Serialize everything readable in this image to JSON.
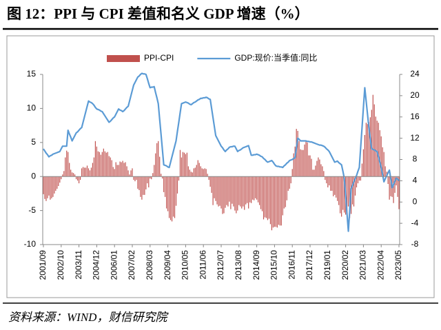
{
  "chart_data": {
    "type": "combo",
    "title": "图 12：PPI 与 CPI 差值和名义 GDP 增速（%）",
    "source": "资料来源：WIND，财信研究院",
    "legend": "top",
    "categories": [
      "2001/09",
      null,
      null,
      null,
      null,
      null,
      null,
      null,
      null,
      null,
      null,
      null,
      null,
      "2002/10",
      null,
      null,
      null,
      null,
      null,
      null,
      null,
      null,
      null,
      null,
      null,
      null,
      "2003/11",
      null,
      null,
      null,
      null,
      null,
      null,
      null,
      null,
      null,
      null,
      null,
      null,
      "2004/12",
      null,
      null,
      null,
      null,
      null,
      null,
      null,
      null,
      null,
      null,
      null,
      null,
      "2006/01",
      null,
      null,
      null,
      null,
      null,
      null,
      null,
      null,
      null,
      null,
      null,
      null,
      "2007/02",
      null,
      null,
      null,
      null,
      null,
      null,
      null,
      null,
      null,
      null,
      null,
      null,
      "2008/03",
      null,
      null,
      null,
      null,
      null,
      null,
      null,
      null,
      null,
      null,
      null,
      null,
      "2009/04",
      null,
      null,
      null,
      null,
      null,
      null,
      null,
      null,
      null,
      null,
      null,
      null,
      "2010/05",
      null,
      null,
      null,
      null,
      null,
      null,
      null,
      null,
      null,
      null,
      null,
      null,
      "2011/06",
      null,
      null,
      null,
      null,
      null,
      null,
      null,
      null,
      null,
      null,
      null,
      null,
      "2012/07",
      null,
      null,
      null,
      null,
      null,
      null,
      null,
      null,
      null,
      null,
      null,
      null,
      "2013/08",
      null,
      null,
      null,
      null,
      null,
      null,
      null,
      null,
      null,
      null,
      null,
      null,
      "2014/09",
      null,
      null,
      null,
      null,
      null,
      null,
      null,
      null,
      null,
      null,
      null,
      null,
      "2015/10",
      null,
      null,
      null,
      null,
      null,
      null,
      null,
      null,
      null,
      null,
      null,
      null,
      "2016/11",
      null,
      null,
      null,
      null,
      null,
      null,
      null,
      null,
      null,
      null,
      null,
      null,
      "2017/12",
      null,
      null,
      null,
      null,
      null,
      null,
      null,
      null,
      null,
      null,
      null,
      null,
      "2019/01",
      null,
      null,
      null,
      null,
      null,
      null,
      null,
      null,
      null,
      null,
      null,
      null,
      "2020/02",
      null,
      null,
      null,
      null,
      null,
      null,
      null,
      null,
      null,
      null,
      null,
      null,
      "2021/03",
      null,
      null,
      null,
      null,
      null,
      null,
      null,
      null,
      null,
      null,
      null,
      null,
      "2022/04",
      null,
      null,
      null,
      null,
      null,
      null,
      null,
      null,
      null,
      null,
      null,
      null,
      "2023/05"
    ],
    "series": [
      {
        "name": "PPI-CPI",
        "type": "bar",
        "axis": "y",
        "color": "#c0504d",
        "values": [
          -2.6,
          -3.3,
          -3.6,
          -3.2,
          -2.8,
          -3.4,
          -3.2,
          -3.0,
          -2.5,
          -2.1,
          -1.8,
          -1.4,
          -0.9,
          -0.4,
          0.3,
          0.8,
          2.8,
          3.8,
          3.6,
          2.0,
          1.0,
          0.6,
          0.5,
          0.3,
          -0.4,
          -0.6,
          -1.0,
          -0.5,
          1.2,
          1.4,
          1.3,
          1.3,
          1.6,
          1.2,
          0.9,
          1.3,
          2.0,
          2.8,
          5.2,
          4.4,
          3.7,
          3.6,
          3.2,
          3.6,
          4.1,
          3.7,
          3.5,
          3.6,
          3.0,
          2.8,
          2.4,
          1.4,
          1.1,
          2.1,
          1.7,
          1.7,
          2.2,
          2.1,
          2.3,
          2.0,
          2.1,
          1.5,
          0.9,
          0.3,
          0.9,
          1.2,
          -0.5,
          -0.7,
          -0.5,
          -1.8,
          -2.0,
          -3.0,
          -3.4,
          -2.7,
          -2.7,
          -1.9,
          -1.0,
          -1.6,
          -0.3,
          -0.4,
          0.5,
          1.7,
          3.4,
          4.9,
          5.2,
          2.9,
          0.4,
          -0.3,
          -2.3,
          -3.0,
          -4.7,
          -5.1,
          -6.1,
          -6.4,
          -6.6,
          -5.9,
          -6.1,
          -4.3,
          -2.5,
          -0.6,
          3.9,
          2.8,
          3.6,
          3.5,
          3.3,
          3.5,
          1.5,
          1.0,
          0.7,
          0.6,
          1.2,
          1.3,
          1.7,
          2.4,
          2.0,
          1.5,
          1.2,
          1.1,
          1.2,
          1.1,
          0.4,
          -0.5,
          -1.5,
          -2.4,
          -4.2,
          -3.2,
          -3.6,
          -4.1,
          -4.4,
          -4.3,
          -4.7,
          -5.5,
          -5.4,
          -4.6,
          -4.2,
          -4.4,
          -3.7,
          -4.8,
          -4.0,
          -4.4,
          -5.0,
          -5.4,
          -5.0,
          -4.2,
          -4.4,
          -4.7,
          -4.4,
          -4.9,
          -4.1,
          -3.9,
          -4.7,
          -3.8,
          -3.9,
          -3.4,
          -3.5,
          -3.2,
          -3.4,
          -3.8,
          -4.2,
          -4.8,
          -5.1,
          -6.3,
          -6.0,
          -6.1,
          -6.4,
          -6.2,
          -7.0,
          -7.9,
          -7.5,
          -7.4,
          -7.4,
          -7.5,
          -7.1,
          -7.2,
          -7.2,
          -5.7,
          -4.7,
          -4.5,
          -3.5,
          -2.1,
          -1.8,
          -1.0,
          1.1,
          3.4,
          4.4,
          7.0,
          6.7,
          5.2,
          4.0,
          3.9,
          3.9,
          4.7,
          5.3,
          5.0,
          3.1,
          3.1,
          2.6,
          1.0,
          1.0,
          1.6,
          2.3,
          2.8,
          2.5,
          1.8,
          1.5,
          0.8,
          -0.5,
          -1.0,
          -1.6,
          -1.3,
          -2.1,
          -2.1,
          -2.9,
          -2.7,
          -3.1,
          -3.6,
          -4.2,
          -5.4,
          -5.9,
          -4.9,
          -5.3,
          -5.6,
          -5.8,
          -4.4,
          -6.1,
          -5.5,
          -4.1,
          -4.4,
          -2.8,
          -1.6,
          -1.0,
          -0.6,
          -0.6,
          1.9,
          4.0,
          6.1,
          7.9,
          7.7,
          8.0,
          8.7,
          9.8,
          12.0,
          10.6,
          8.8,
          8.2,
          7.9,
          6.8,
          5.9,
          4.3,
          3.6,
          1.5,
          0.7,
          -1.1,
          -3.4,
          -2.9,
          -3.0,
          -3.9,
          -2.4,
          -1.3,
          -3.0,
          -4.8
        ]
      },
      {
        "name": "GDP:现价:当季值:同比",
        "type": "line",
        "axis": "y2",
        "color": "#5b9bd5",
        "values": [
          10,
          9.6,
          9.2,
          8.9,
          8.5,
          8.7,
          8.8,
          9,
          9.1,
          9.2,
          9.3,
          9.4,
          9.5,
          10,
          10.5,
          10.5,
          10.5,
          10.5,
          13.5,
          12.8,
          12.2,
          11.5,
          12,
          12.5,
          13,
          13.2,
          13.5,
          13.8,
          14,
          15,
          16,
          17,
          18,
          19,
          18.8,
          18.7,
          18.5,
          18.2,
          17.8,
          17.5,
          17.4,
          17.3,
          17.1,
          17,
          16.6,
          16.2,
          15.8,
          15.4,
          15,
          15.2,
          15.5,
          15.8,
          16,
          16.5,
          17,
          17.5,
          17.3,
          17.2,
          17,
          17.2,
          17.5,
          17.8,
          18,
          19,
          20,
          21,
          22,
          22.5,
          23,
          23.5,
          23.7,
          24,
          24.2,
          24.1,
          24.1,
          24,
          23.2,
          22.3,
          21.5,
          21.6,
          21.6,
          21.7,
          20.6,
          19.6,
          18.5,
          15.6,
          12.8,
          9.9,
          7,
          6.9,
          6.8,
          6.6,
          6.5,
          7.5,
          8.5,
          9.5,
          10.5,
          11.5,
          13.3,
          15,
          16.8,
          18.5,
          18.6,
          18.7,
          18.8,
          18.7,
          18.6,
          18.4,
          18.3,
          18.5,
          18.7,
          18.8,
          19,
          19.2,
          19.3,
          19.5,
          19.5,
          19.6,
          19.6,
          19.7,
          19.6,
          19.4,
          19.3,
          17.6,
          15.9,
          14.2,
          12.5,
          12,
          11.5,
          11,
          10.5,
          10.2,
          9.8,
          9.5,
          9.8,
          10,
          10.3,
          10.4,
          10.4,
          10.5,
          10.5,
          10,
          9.5,
          9.7,
          9.8,
          10,
          10.2,
          10.3,
          10.4,
          10.5,
          10.6,
          9.7,
          8.8,
          8.8,
          8.9,
          8.9,
          9,
          8.9,
          8.8,
          8.6,
          8.5,
          8.2,
          8,
          7.7,
          7.5,
          7.6,
          7.7,
          7.8,
          7.5,
          7.1,
          6.8,
          6.7,
          6.7,
          6.6,
          6.6,
          6.5,
          6.8,
          7,
          7.3,
          7.5,
          7.8,
          7.9,
          8,
          8.2,
          8.3,
          10.2,
          12,
          11.8,
          11.5,
          11.5,
          11.5,
          11.5,
          11.5,
          11.4,
          11.4,
          11.3,
          11.3,
          11.2,
          11.1,
          11,
          10.9,
          10.8,
          10.7,
          10.7,
          10.6,
          10.5,
          10.3,
          10,
          9.8,
          9.5,
          9,
          8.5,
          8,
          7.5,
          7.6,
          7.7,
          7.4,
          7.2,
          7,
          5.8,
          4.5,
          1.2,
          -2.2,
          -5.5,
          -1.5,
          2.5,
          3.1,
          3.8,
          4.4,
          5,
          5.8,
          6.5,
          10.3,
          14,
          17.8,
          21.5,
          19,
          16.5,
          14,
          12,
          10,
          9.9,
          9.8,
          9.6,
          9.5,
          8.5,
          7.5,
          6.5,
          5.2,
          3.8,
          4.4,
          4.9,
          5.5,
          6,
          4.4,
          2.7,
          3.3,
          3.9,
          4.5,
          4.3,
          4
        ]
      }
    ],
    "ylim": [
      -10,
      15
    ],
    "yticks": [
      -10,
      -5,
      0,
      5,
      10,
      15
    ],
    "y2lim": [
      -8,
      24
    ],
    "y2ticks": [
      -8,
      -4,
      0,
      4,
      8,
      12,
      16,
      20,
      24
    ]
  }
}
